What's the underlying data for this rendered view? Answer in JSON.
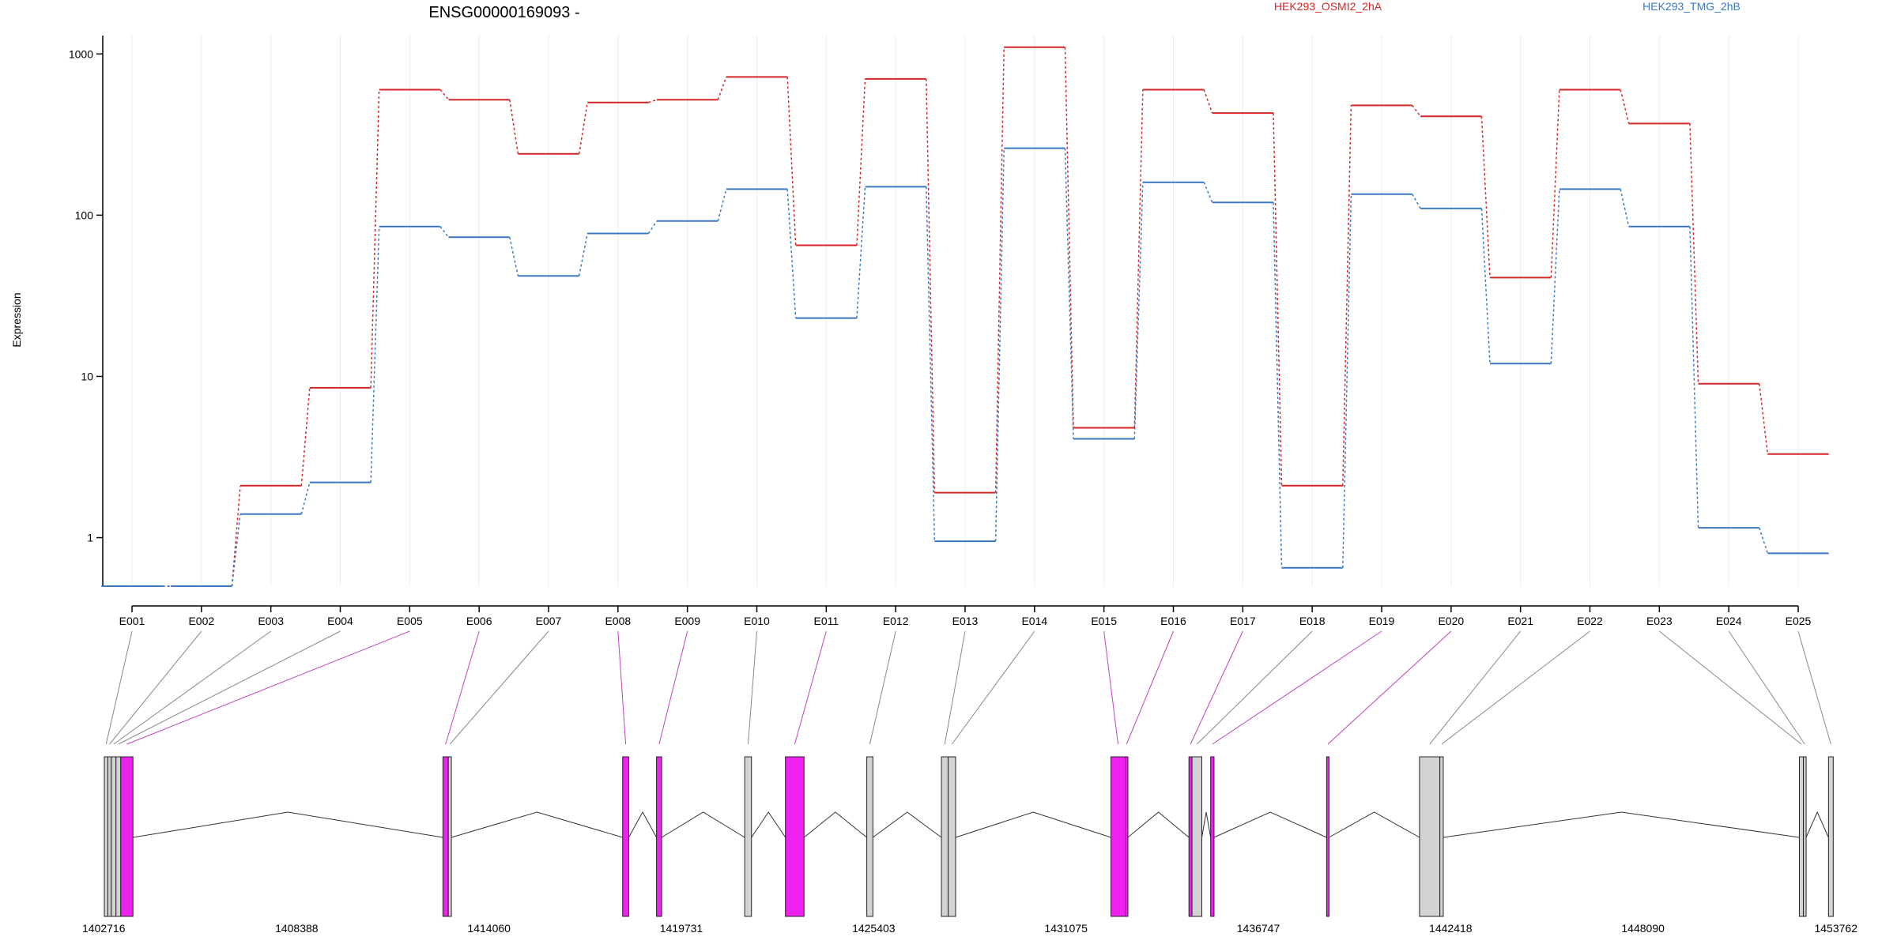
{
  "chart_data": {
    "type": "line",
    "title": "ENSG00000169093 -",
    "ylabel": "Expression",
    "yscale": "log",
    "ylim": [
      0.5,
      1300
    ],
    "yticks": [
      1,
      10,
      100,
      1000
    ],
    "ytick_labels": [
      "1",
      "10",
      "100",
      "1000"
    ],
    "categories": [
      "E001",
      "E002",
      "E003",
      "E004",
      "E005",
      "E006",
      "E007",
      "E008",
      "E009",
      "E010",
      "E011",
      "E012",
      "E013",
      "E014",
      "E015",
      "E016",
      "E017",
      "E018",
      "E019",
      "E020",
      "E021",
      "E022",
      "E023",
      "E024",
      "E025"
    ],
    "series": [
      {
        "name": "HEK293_OSMI2_2hA",
        "color": "#d62728",
        "values": [
          0.5,
          0.5,
          2.1,
          8.5,
          600,
          520,
          240,
          500,
          520,
          720,
          65,
          700,
          1.9,
          1100,
          4.8,
          600,
          430,
          2.1,
          480,
          410,
          41,
          600,
          370,
          9,
          3.3
        ]
      },
      {
        "name": "HEK293_TMG_2hB",
        "color": "#3b78c2",
        "values": [
          0.5,
          0.5,
          1.4,
          2.2,
          85,
          73,
          42,
          77,
          92,
          145,
          23,
          150,
          0.95,
          260,
          4.1,
          160,
          120,
          0.65,
          135,
          110,
          12,
          145,
          85,
          1.15,
          0.8
        ]
      }
    ],
    "gene_model": {
      "coordinate_labels": [
        "1402716",
        "1408388",
        "1414060",
        "1419731",
        "1425403",
        "1431075",
        "1436747",
        "1442418",
        "1448090",
        "1453762"
      ],
      "xlim": [
        1402716,
        1453762
      ],
      "exons": [
        {
          "id": "E001",
          "start": 1402716,
          "end": 1402820,
          "color": "#d3d3d3"
        },
        {
          "id": "E002",
          "start": 1402820,
          "end": 1402920,
          "color": "#d3d3d3"
        },
        {
          "id": "E003",
          "start": 1402920,
          "end": 1403060,
          "color": "#d3d3d3"
        },
        {
          "id": "E004",
          "start": 1403060,
          "end": 1403200,
          "color": "#d3d3d3"
        },
        {
          "id": "E005",
          "start": 1403200,
          "end": 1403560,
          "color": "#ee22ee"
        },
        {
          "id": "E006",
          "start": 1412700,
          "end": 1412860,
          "color": "#ee22ee"
        },
        {
          "id": "E007",
          "start": 1412860,
          "end": 1412950,
          "color": "#d3d3d3"
        },
        {
          "id": "E008",
          "start": 1418000,
          "end": 1418180,
          "color": "#ee22ee"
        },
        {
          "id": "E009",
          "start": 1419000,
          "end": 1419150,
          "color": "#ee22ee"
        },
        {
          "id": "E010",
          "start": 1421600,
          "end": 1421800,
          "color": "#d3d3d3"
        },
        {
          "id": "E011",
          "start": 1422800,
          "end": 1423350,
          "color": "#ee22ee"
        },
        {
          "id": "E012",
          "start": 1425200,
          "end": 1425380,
          "color": "#d3d3d3"
        },
        {
          "id": "E013",
          "start": 1427400,
          "end": 1427600,
          "color": "#d3d3d3"
        },
        {
          "id": "E014",
          "start": 1427600,
          "end": 1427820,
          "color": "#d3d3d3"
        },
        {
          "id": "E015",
          "start": 1432400,
          "end": 1432820,
          "color": "#ee22ee"
        },
        {
          "id": "E016",
          "start": 1432820,
          "end": 1432900,
          "color": "#ee22ee"
        },
        {
          "id": "E017",
          "start": 1434700,
          "end": 1434790,
          "color": "#ee22ee"
        },
        {
          "id": "E018",
          "start": 1434790,
          "end": 1435080,
          "color": "#d3d3d3"
        },
        {
          "id": "E019",
          "start": 1435340,
          "end": 1435440,
          "color": "#ee22ee"
        },
        {
          "id": "E020",
          "start": 1438760,
          "end": 1438830,
          "color": "#ee22ee"
        },
        {
          "id": "E021",
          "start": 1441500,
          "end": 1442100,
          "color": "#d3d3d3"
        },
        {
          "id": "E022",
          "start": 1442100,
          "end": 1442200,
          "color": "#d3d3d3"
        },
        {
          "id": "E023",
          "start": 1452700,
          "end": 1452820,
          "color": "#d3d3d3"
        },
        {
          "id": "E024",
          "start": 1452820,
          "end": 1452900,
          "color": "#d3d3d3"
        },
        {
          "id": "E025",
          "start": 1453560,
          "end": 1453700,
          "color": "#d3d3d3"
        }
      ]
    }
  }
}
